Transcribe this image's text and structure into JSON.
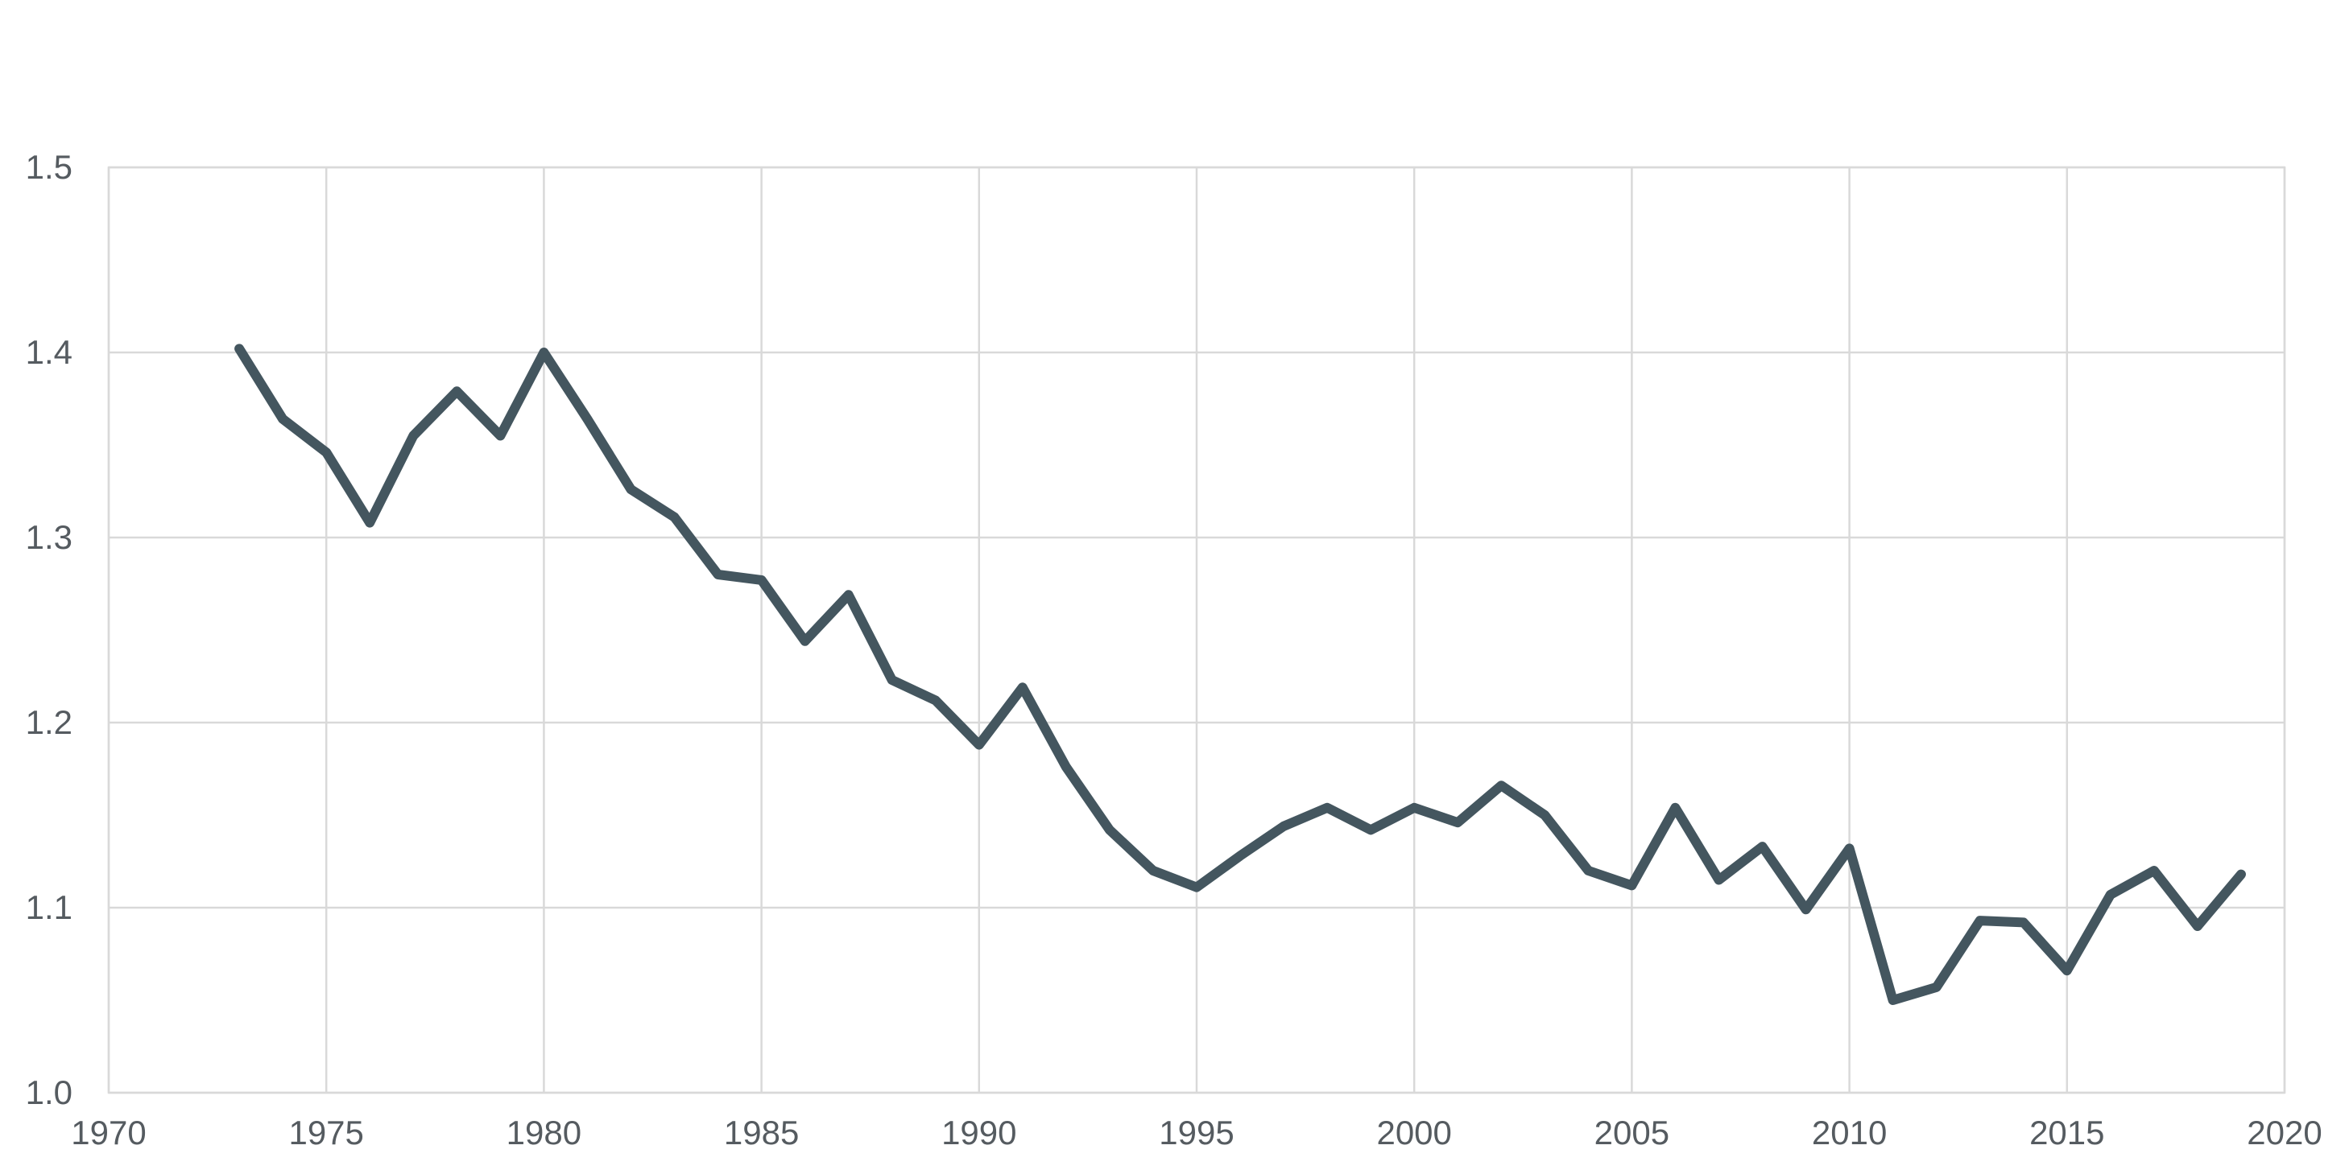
{
  "chart_data": {
    "type": "line",
    "title": "",
    "xlabel": "",
    "ylabel": "",
    "xlim": [
      1970,
      2020
    ],
    "ylim": [
      1.0,
      1.5
    ],
    "x_ticks": [
      1970,
      1975,
      1980,
      1985,
      1990,
      1995,
      2000,
      2005,
      2010,
      2015,
      2020
    ],
    "x_tick_labels": [
      "1970",
      "1975",
      "1980",
      "1985",
      "1990",
      "1995",
      "2000",
      "2005",
      "2010",
      "2015",
      "2020"
    ],
    "y_ticks": [
      1.0,
      1.1,
      1.2,
      1.3,
      1.4,
      1.5
    ],
    "y_tick_labels": [
      "1.0",
      "1.1",
      "1.2",
      "1.3",
      "1.4",
      "1.5"
    ],
    "grid": true,
    "legend": "none",
    "line_color": "#44565f",
    "x": [
      1973,
      1974,
      1975,
      1976,
      1977,
      1978,
      1979,
      1980,
      1981,
      1982,
      1983,
      1984,
      1985,
      1986,
      1987,
      1988,
      1989,
      1990,
      1991,
      1992,
      1993,
      1994,
      1995,
      1996,
      1997,
      1998,
      1999,
      2000,
      2001,
      2002,
      2003,
      2004,
      2005,
      2006,
      2007,
      2008,
      2009,
      2010,
      2011,
      2012,
      2013,
      2014,
      2015,
      2016,
      2017,
      2018,
      2019
    ],
    "series": [
      {
        "values": [
          1.402,
          1.364,
          1.346,
          1.308,
          1.355,
          1.379,
          1.355,
          1.4,
          1.364,
          1.326,
          1.311,
          1.28,
          1.277,
          1.244,
          1.269,
          1.223,
          1.212,
          1.188,
          1.219,
          1.176,
          1.142,
          1.12,
          1.111,
          1.128,
          1.144,
          1.154,
          1.142,
          1.154,
          1.146,
          1.166,
          1.15,
          1.12,
          1.112,
          1.154,
          1.115,
          1.133,
          1.099,
          1.132,
          1.05,
          1.057,
          1.093,
          1.092,
          1.066,
          1.107,
          1.12,
          1.09,
          1.118
        ]
      }
    ]
  }
}
